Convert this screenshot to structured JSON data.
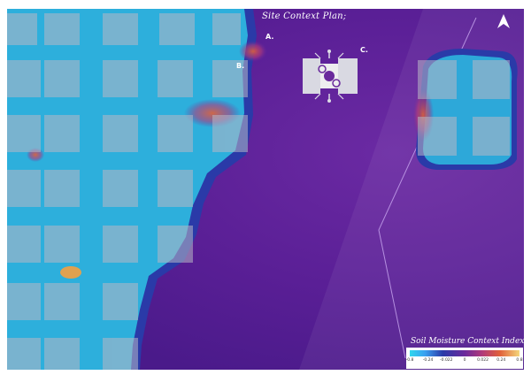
{
  "map": {
    "title": "Site Context Plan;",
    "labels": {
      "a": "A.",
      "b": "B.",
      "c": "C."
    },
    "north_arrow": "north-arrow-icon"
  },
  "legend": {
    "title": "Soil Moisture Context Index;",
    "ticks": [
      "-0.8",
      "-0.24",
      "-0.022",
      "0",
      "0.022",
      "0.24",
      "0.8"
    ],
    "colors": [
      "#2fd7ee",
      "#3aa0f0",
      "#2a3aa8",
      "#6a2a9c",
      "#b13a7a",
      "#e0603a",
      "#f4d67a"
    ]
  },
  "colors": {
    "background_purple": "#4a1a8a",
    "moisture_cyan": "#2fd7ee",
    "building_white": "#ffffff"
  }
}
